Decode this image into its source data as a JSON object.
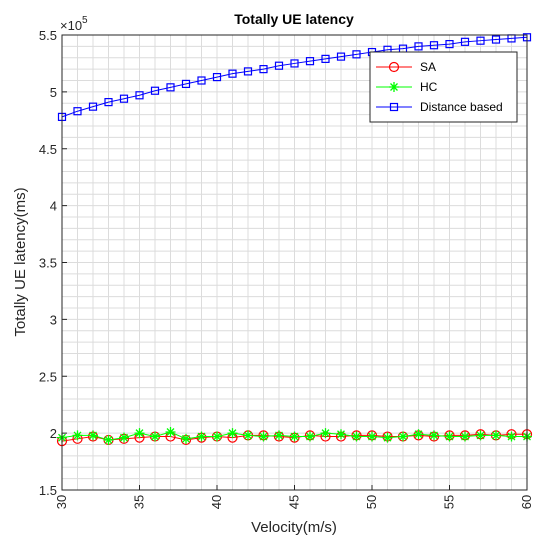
{
  "chart_data": {
    "type": "line",
    "title": "Totally UE latency",
    "xlabel": "Velocity(m/s)",
    "ylabel": "Totally UE latency(ms)",
    "y_exponent_label": "×10",
    "y_exponent": "5",
    "xlim": [
      30,
      60
    ],
    "ylim": [
      1.5,
      5.5
    ],
    "xticks": [
      "30",
      "35",
      "40",
      "45",
      "50",
      "55",
      "60"
    ],
    "yticks": [
      "1.5",
      "2",
      "2.5",
      "3",
      "3.5",
      "4",
      "4.5",
      "5",
      "5.5"
    ],
    "grid": true,
    "legend_position": "top-right",
    "x": [
      30,
      31,
      32,
      33,
      34,
      35,
      36,
      37,
      38,
      39,
      40,
      41,
      42,
      43,
      44,
      45,
      46,
      47,
      48,
      49,
      50,
      51,
      52,
      53,
      54,
      55,
      56,
      57,
      58,
      59,
      60
    ],
    "series": [
      {
        "name": "SA",
        "color": "#ff0000",
        "marker": "circle",
        "values": [
          1.93,
          1.95,
          1.97,
          1.94,
          1.95,
          1.96,
          1.97,
          1.97,
          1.94,
          1.96,
          1.97,
          1.96,
          1.98,
          1.98,
          1.97,
          1.96,
          1.98,
          1.97,
          1.97,
          1.98,
          1.98,
          1.97,
          1.97,
          1.98,
          1.97,
          1.98,
          1.98,
          1.99,
          1.98,
          1.99,
          1.99
        ]
      },
      {
        "name": "HC",
        "color": "#00ff00",
        "marker": "star",
        "values": [
          1.96,
          1.98,
          1.98,
          1.94,
          1.96,
          2.0,
          1.97,
          2.01,
          1.95,
          1.97,
          1.97,
          2.0,
          1.98,
          1.97,
          1.98,
          1.97,
          1.97,
          2.0,
          1.99,
          1.97,
          1.97,
          1.96,
          1.97,
          1.99,
          1.98,
          1.97,
          1.97,
          1.98,
          1.98,
          1.97,
          1.97
        ]
      },
      {
        "name": "Distance based",
        "color": "#0000ff",
        "marker": "square",
        "values": [
          4.78,
          4.83,
          4.87,
          4.91,
          4.94,
          4.97,
          5.01,
          5.04,
          5.07,
          5.1,
          5.13,
          5.16,
          5.18,
          5.2,
          5.23,
          5.25,
          5.27,
          5.29,
          5.31,
          5.33,
          5.35,
          5.37,
          5.38,
          5.4,
          5.41,
          5.42,
          5.44,
          5.45,
          5.46,
          5.47,
          5.48
        ]
      }
    ]
  }
}
